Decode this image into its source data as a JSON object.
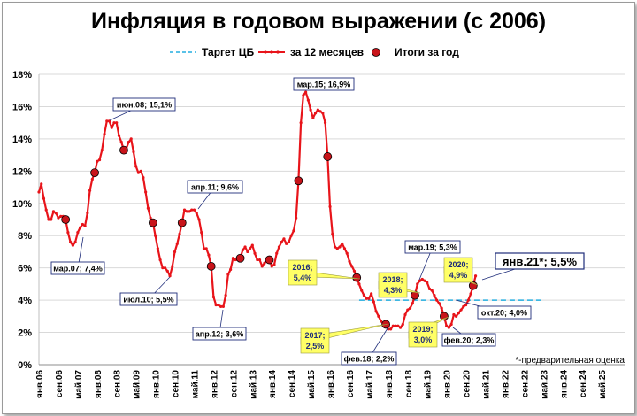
{
  "title": "Инфляция в годовом выражении (с 2006)",
  "legend": {
    "target": "Таргет ЦБ",
    "monthly": "за 12 месяцев",
    "annual": "Итоги за год"
  },
  "note": "*-предварительная оценка",
  "colors": {
    "line": "#e8141a",
    "target": "#24aee0",
    "marker": "#c8141a",
    "grid": "#d9d9d9",
    "highlight": "#ffff66"
  },
  "chart_data": {
    "type": "line",
    "title": "Инфляция в годовом выражении (с 2006)",
    "ylim": [
      0,
      18
    ],
    "yticks": [
      "0%",
      "2%",
      "4%",
      "6%",
      "8%",
      "10%",
      "12%",
      "14%",
      "16%",
      "18%"
    ],
    "xticks": [
      "янв.06",
      "сен.06",
      "май.07",
      "янв.08",
      "сен.08",
      "май.09",
      "янв.10",
      "сен.10",
      "май.11",
      "янв.12",
      "сен.12",
      "май.13",
      "янв.14",
      "сен.14",
      "май.15",
      "янв.16",
      "сен.16",
      "май.17",
      "янв.18",
      "сен.18",
      "май.19",
      "янв.20",
      "сен.20",
      "май.21",
      "янв.22",
      "сен.22",
      "май.23",
      "янв.24",
      "сен.24",
      "май.25"
    ],
    "grid": "horizontal",
    "legend_position": "top",
    "target_line": {
      "value": 4.0,
      "from": "янв.17",
      "to": "май.23"
    },
    "series": [
      {
        "name": "за 12 месяцев",
        "start": "янв.06",
        "values": [
          10.7,
          11.2,
          10.3,
          9.6,
          9.0,
          9.0,
          9.5,
          9.4,
          9.1,
          9.2,
          9.2,
          9.0,
          8.2,
          7.6,
          7.4,
          7.6,
          8.2,
          8.5,
          8.7,
          8.6,
          9.4,
          10.8,
          11.5,
          11.9,
          12.6,
          12.7,
          13.3,
          14.3,
          15.1,
          15.1,
          14.7,
          15.0,
          15.0,
          14.2,
          13.8,
          13.3,
          13.4,
          13.8,
          14.0,
          13.2,
          12.3,
          11.9,
          12.0,
          11.6,
          10.7,
          9.7,
          9.1,
          8.8,
          8.0,
          7.2,
          6.5,
          6.0,
          6.0,
          5.8,
          5.5,
          6.1,
          7.0,
          7.5,
          8.1,
          8.8,
          9.6,
          9.5,
          9.5,
          9.6,
          9.6,
          9.4,
          9.0,
          8.2,
          7.2,
          7.2,
          6.8,
          6.1,
          4.2,
          3.7,
          3.7,
          3.6,
          3.6,
          4.3,
          5.6,
          5.9,
          6.6,
          6.5,
          6.5,
          6.6,
          7.1,
          7.3,
          7.0,
          7.2,
          7.4,
          6.9,
          6.5,
          6.5,
          6.1,
          6.3,
          6.5,
          6.5,
          6.1,
          6.2,
          6.9,
          7.3,
          7.6,
          7.8,
          7.5,
          7.6,
          8.0,
          8.3,
          9.1,
          11.4,
          15.0,
          16.7,
          16.9,
          16.4,
          15.8,
          15.3,
          15.6,
          15.8,
          15.7,
          15.6,
          15.0,
          12.9,
          9.8,
          8.1,
          7.3,
          7.2,
          7.3,
          7.5,
          7.2,
          6.9,
          6.4,
          6.1,
          5.8,
          5.4,
          5.0,
          4.6,
          4.3,
          4.1,
          4.1,
          4.4,
          3.9,
          3.3,
          3.0,
          2.7,
          2.5,
          2.5,
          2.2,
          2.2,
          2.4,
          2.4,
          2.4,
          2.3,
          2.5,
          3.1,
          3.4,
          3.5,
          3.8,
          4.3,
          5.0,
          5.2,
          5.3,
          5.2,
          5.1,
          4.7,
          4.6,
          4.3,
          4.0,
          3.8,
          3.5,
          3.0,
          2.4,
          2.3,
          2.5,
          3.1,
          3.0,
          3.2,
          3.4,
          3.6,
          3.7,
          4.0,
          4.4,
          4.9,
          5.5
        ]
      },
      {
        "name": "Итоги за год",
        "points": [
          [
            "дек.06",
            9.0
          ],
          [
            "дек.07",
            11.9
          ],
          [
            "дек.08",
            13.3
          ],
          [
            "дек.09",
            8.8
          ],
          [
            "дек.10",
            8.8
          ],
          [
            "дек.11",
            6.1
          ],
          [
            "дек.12",
            6.6
          ],
          [
            "дек.13",
            6.5
          ],
          [
            "дек.14",
            11.4
          ],
          [
            "дек.15",
            12.9
          ],
          [
            "дек.16",
            5.4
          ],
          [
            "дек.17",
            2.5
          ],
          [
            "дек.18",
            4.3
          ],
          [
            "дек.19",
            3.0
          ],
          [
            "дек.20",
            4.9
          ]
        ]
      }
    ],
    "annotations": [
      {
        "label": "мар.07; 7,4%",
        "style": "box"
      },
      {
        "label": "июн.08; 15,1%",
        "style": "box"
      },
      {
        "label": "июл.10; 5,5%",
        "style": "box"
      },
      {
        "label": "апр.11; 9,6%",
        "style": "box"
      },
      {
        "label": "апр.12; 3,6%",
        "style": "box"
      },
      {
        "label": "мар.15; 16,9%",
        "style": "box"
      },
      {
        "label": "фев.18; 2,2%",
        "style": "box"
      },
      {
        "label": "мар.19; 5,3%",
        "style": "box"
      },
      {
        "label": "фев.20; 2,3%",
        "style": "box"
      },
      {
        "label": "окт.20; 4,0%",
        "style": "box"
      },
      {
        "label": "янв.21*; 5,5%",
        "style": "box-large"
      },
      {
        "label": [
          "2016;",
          "5,4%"
        ],
        "style": "yellow"
      },
      {
        "label": [
          "2017;",
          "2,5%"
        ],
        "style": "yellow"
      },
      {
        "label": [
          "2018;",
          "4,3%"
        ],
        "style": "yellow"
      },
      {
        "label": [
          "2019;",
          "3,0%"
        ],
        "style": "yellow"
      },
      {
        "label": [
          "2020;",
          "4,9%"
        ],
        "style": "yellow"
      }
    ]
  }
}
